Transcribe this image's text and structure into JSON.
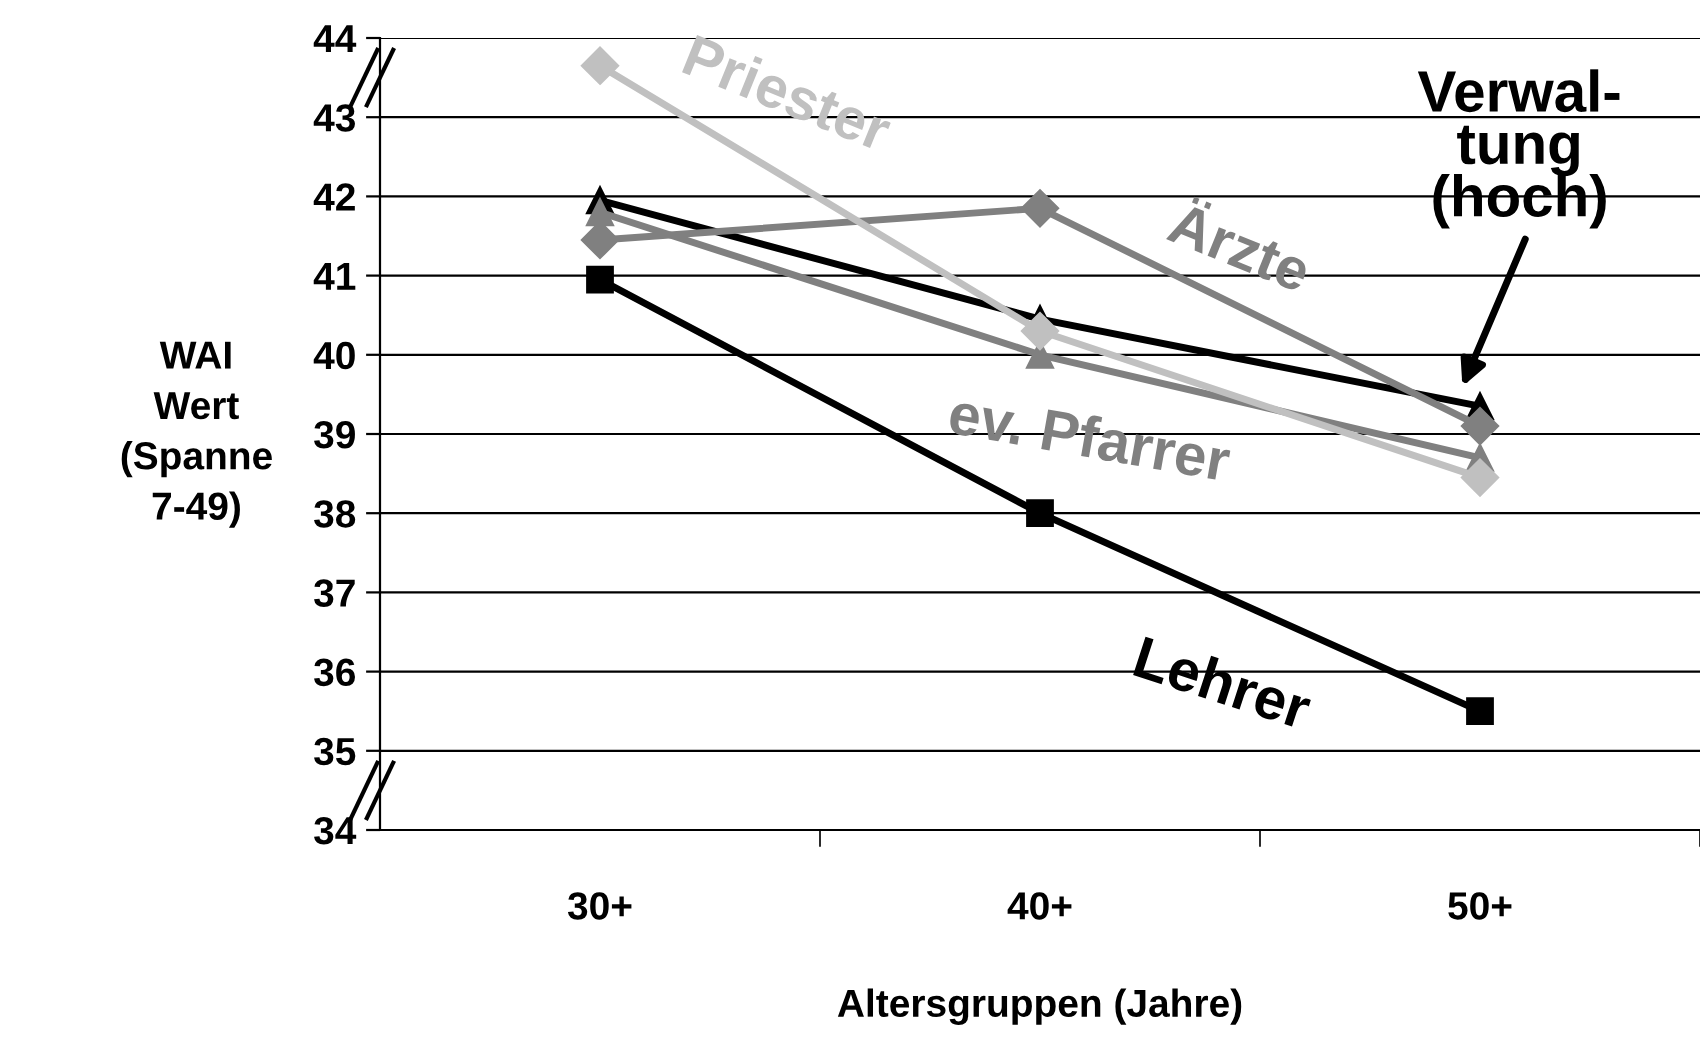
{
  "chart_data": {
    "type": "line",
    "xlabel": "Altersgruppen (Jahre)",
    "ylabel": "WAI\nWert\n(Spanne\n7-49)",
    "categories": [
      "30+",
      "40+",
      "50+"
    ],
    "ylim": [
      34,
      44
    ],
    "yticks": [
      34,
      35,
      36,
      37,
      38,
      39,
      40,
      41,
      42,
      43,
      44
    ],
    "grid": "y",
    "legend": false,
    "series": [
      {
        "name": "Priester",
        "color": "#c0c0c0",
        "marker": "diamond",
        "values": [
          43.65,
          40.3,
          38.45
        ]
      },
      {
        "name": "Ärzte",
        "color": "#808080",
        "marker": "diamond",
        "values": [
          41.45,
          41.85,
          39.1
        ]
      },
      {
        "name": "ev. Pfarrer",
        "color": "#808080",
        "marker": "triangle",
        "values": [
          41.8,
          40.0,
          38.7
        ]
      },
      {
        "name": "Verwal-\ntung\n(hoch)",
        "color": "#000000",
        "marker": "triangle",
        "values": [
          41.95,
          40.45,
          39.35
        ]
      },
      {
        "name": "Lehrer",
        "color": "#000000",
        "marker": "square",
        "values": [
          40.95,
          38.0,
          35.5
        ]
      }
    ]
  }
}
